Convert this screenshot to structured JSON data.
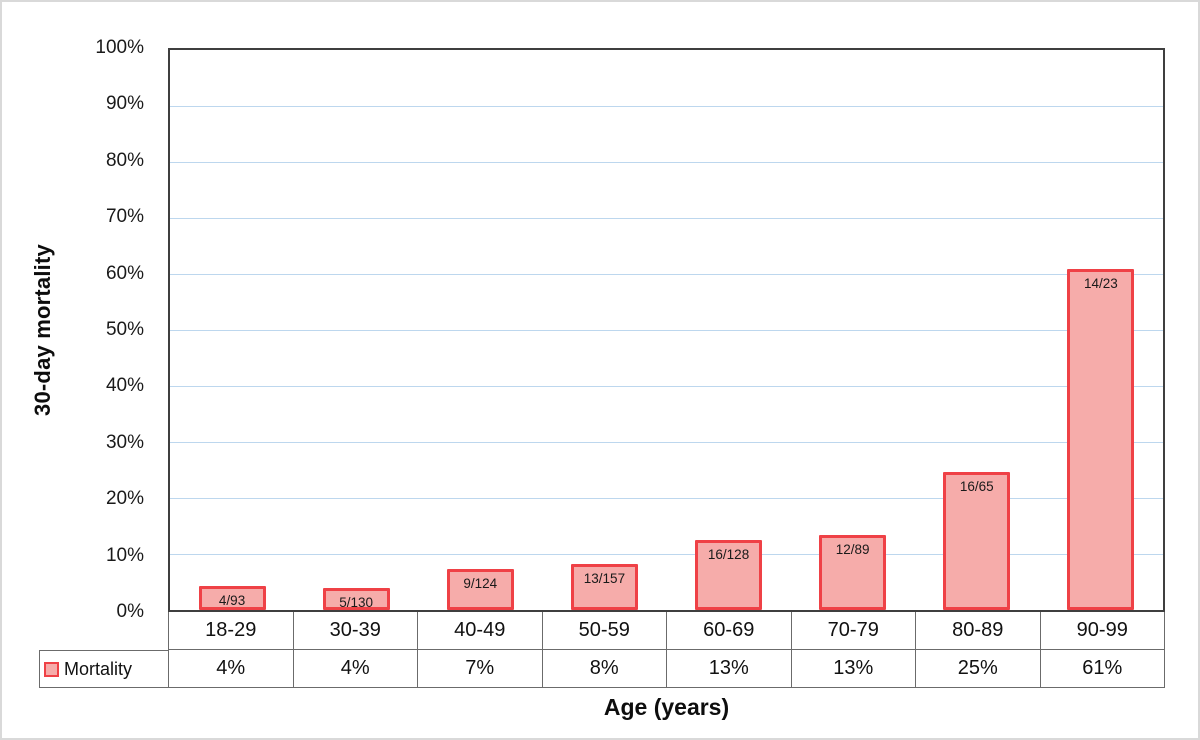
{
  "chart_data": {
    "type": "bar",
    "title": "",
    "xlabel": "Age (years)",
    "ylabel": "30-day mortality",
    "categories": [
      "18-29",
      "30-39",
      "40-49",
      "50-59",
      "60-69",
      "70-79",
      "80-89",
      "90-99"
    ],
    "series": [
      {
        "name": "Mortality",
        "values_pct": [
          4.3,
          3.85,
          7.26,
          8.28,
          12.5,
          13.48,
          24.62,
          60.87
        ],
        "bar_labels": [
          "4/93",
          "5/130",
          "9/124",
          "13/157",
          "16/128",
          "12/89",
          "16/65",
          "14/23"
        ],
        "table_values": [
          "4%",
          "4%",
          "7%",
          "8%",
          "13%",
          "13%",
          "25%",
          "61%"
        ]
      }
    ],
    "ylim": [
      0,
      100
    ],
    "y_tick_step": 10,
    "y_tick_labels": [
      "0%",
      "10%",
      "20%",
      "30%",
      "40%",
      "50%",
      "60%",
      "70%",
      "80%",
      "90%",
      "100%"
    ],
    "grid": true,
    "legend_position": "table-left",
    "colors": {
      "bar_fill": "#f6acaa",
      "bar_border": "#ef4146",
      "gridline": "#bdd7ee",
      "axis_line": "#3f3f3f",
      "table_border": "#6b6b6b"
    }
  }
}
